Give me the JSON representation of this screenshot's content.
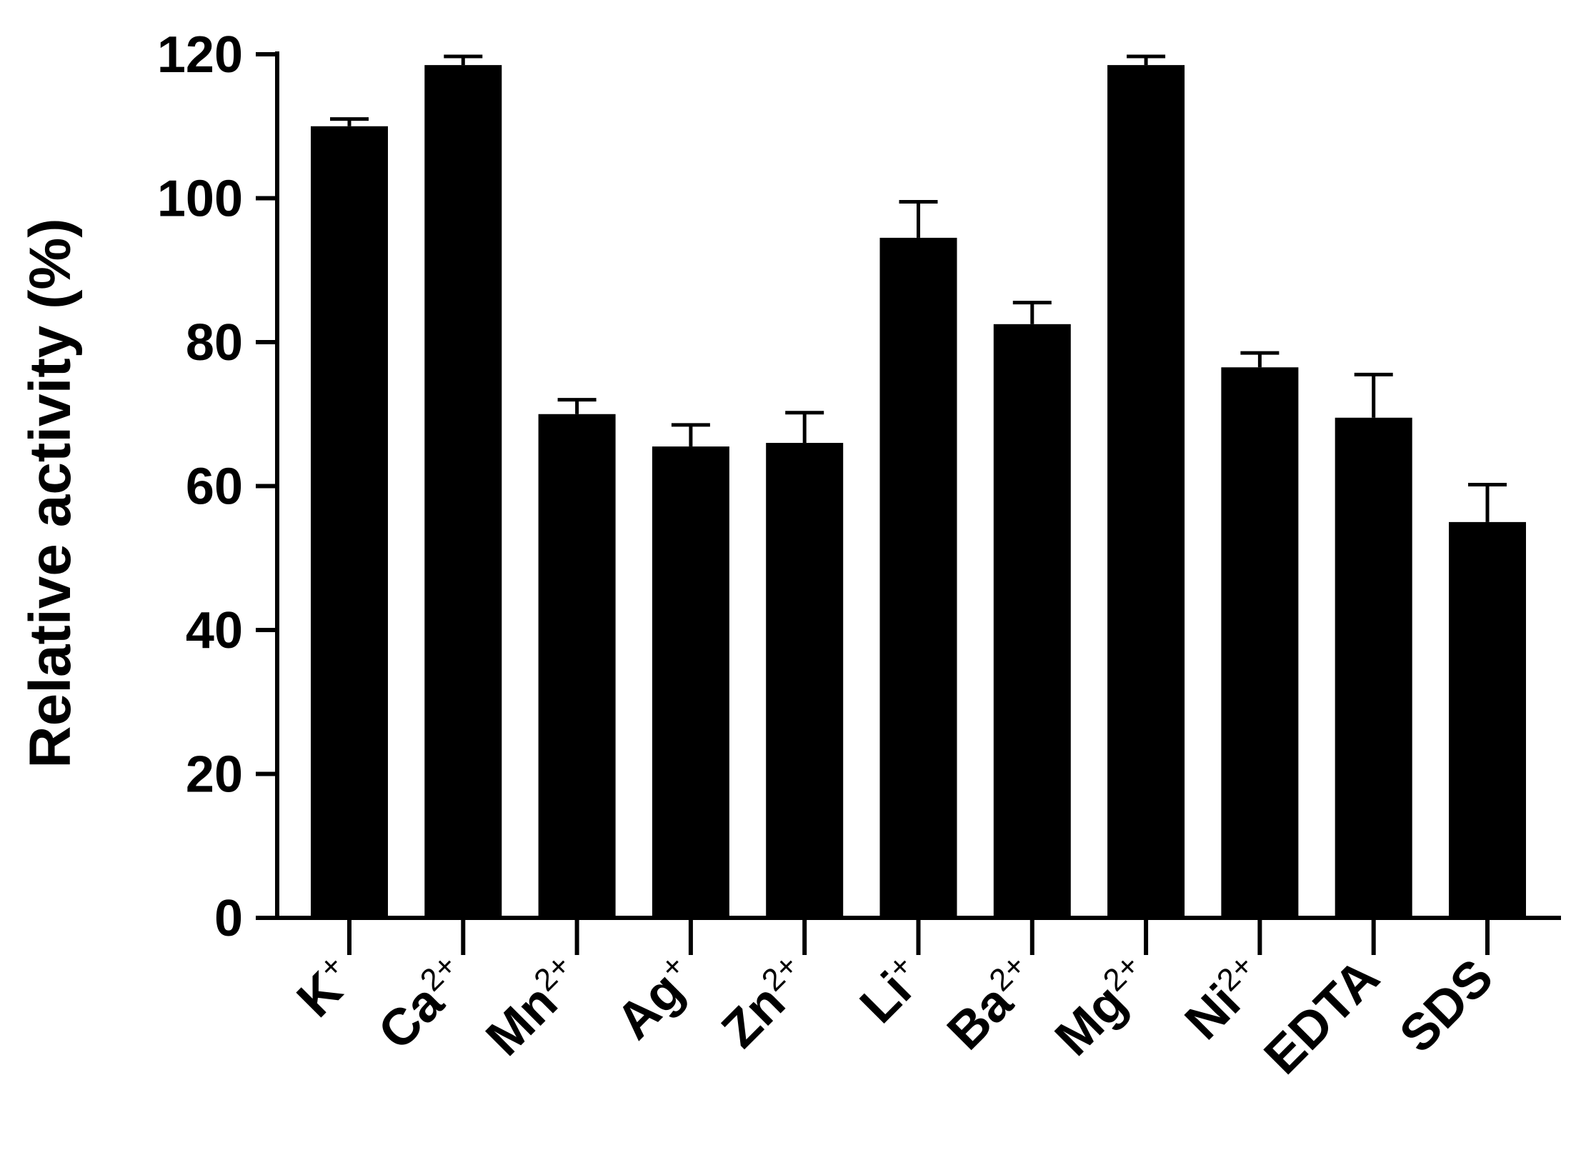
{
  "chart_data": {
    "type": "bar",
    "title": "",
    "xlabel": "",
    "ylabel": "Relative activity (%)",
    "ylim": [
      0,
      120
    ],
    "yticks": [
      "0",
      "20",
      "40",
      "60",
      "80",
      "100",
      "120"
    ],
    "grid": false,
    "legend": "none",
    "categories": [
      {
        "base": "K",
        "sup": "+"
      },
      {
        "base": "Ca",
        "sup": "2+"
      },
      {
        "base": "Mn",
        "sup": "2+"
      },
      {
        "base": "Ag",
        "sup": "+"
      },
      {
        "base": "Zn",
        "sup": "2+"
      },
      {
        "base": "Li",
        "sup": "+"
      },
      {
        "base": "Ba",
        "sup": "2+"
      },
      {
        "base": "Mg",
        "sup": "2+"
      },
      {
        "base": "Ni",
        "sup": "2+"
      },
      {
        "base": "EDTA",
        "sup": ""
      },
      {
        "base": "SDS",
        "sup": ""
      }
    ],
    "values": [
      110,
      118.5,
      70,
      65.5,
      66,
      94.5,
      82.5,
      118.5,
      76.5,
      69.5,
      55
    ],
    "errors": [
      1,
      1.2,
      2,
      3,
      4.2,
      5,
      3,
      1.2,
      2,
      6,
      5.2
    ],
    "colors": {
      "bar": "#000000",
      "axis": "#000000"
    }
  }
}
